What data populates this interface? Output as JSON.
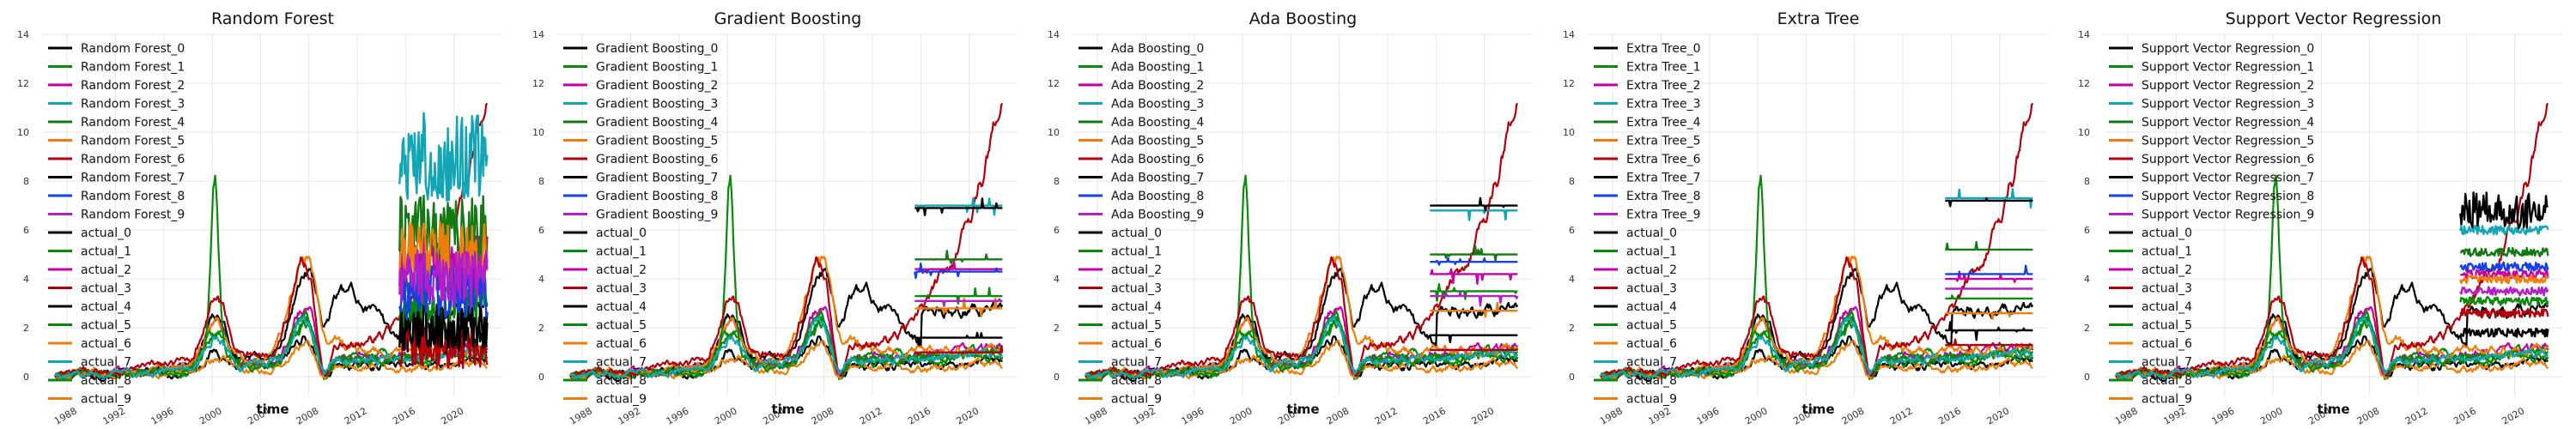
{
  "chart_data": [
    {
      "type": "line",
      "title": "Random Forest",
      "xlabel": "time",
      "ylabel": "",
      "x_tick_labels": [
        "1988",
        "1992",
        "1996",
        "2000",
        "2004",
        "2008",
        "2012",
        "2016",
        "2020"
      ],
      "y_ticks": [
        0,
        2,
        4,
        6,
        8,
        10,
        12,
        14
      ],
      "xlim": [
        1986,
        2024
      ],
      "ylim": [
        -0.8,
        14
      ],
      "grid": true,
      "legend_position": "top-left",
      "forecast_start": 2015.5,
      "forecast_style": "noisy",
      "series_names": [
        "Random Forest_0",
        "Random Forest_1",
        "Random Forest_2",
        "Random Forest_3",
        "Random Forest_4",
        "Random Forest_5",
        "Random Forest_6",
        "Random Forest_7",
        "Random Forest_8",
        "Random Forest_9"
      ],
      "forecast_levels": [
        1.8,
        3.0,
        4.5,
        9.0,
        6.0,
        5.0,
        1.2,
        2.0,
        3.5,
        4.0
      ]
    },
    {
      "type": "line",
      "title": "Gradient Boosting",
      "xlabel": "time",
      "ylabel": "",
      "x_tick_labels": [
        "1988",
        "1992",
        "1996",
        "2000",
        "2004",
        "2008",
        "2012",
        "2016",
        "2020"
      ],
      "y_ticks": [
        0,
        2,
        4,
        6,
        8,
        10,
        12,
        14
      ],
      "xlim": [
        1986,
        2024
      ],
      "ylim": [
        -0.8,
        14
      ],
      "grid": true,
      "legend_position": "top-left",
      "forecast_start": 2015.5,
      "forecast_style": "flat",
      "series_names": [
        "Gradient Boosting_0",
        "Gradient Boosting_1",
        "Gradient Boosting_2",
        "Gradient Boosting_3",
        "Gradient Boosting_4",
        "Gradient Boosting_5",
        "Gradient Boosting_6",
        "Gradient Boosting_7",
        "Gradient Boosting_8",
        "Gradient Boosting_9"
      ],
      "forecast_levels": [
        1.6,
        3.3,
        4.4,
        7.0,
        4.8,
        2.8,
        1.0,
        6.9,
        4.3,
        3.1
      ]
    },
    {
      "type": "line",
      "title": "Ada Boosting",
      "xlabel": "time",
      "ylabel": "",
      "x_tick_labels": [
        "1988",
        "1992",
        "1996",
        "2000",
        "2004",
        "2008",
        "2012",
        "2016",
        "2020"
      ],
      "y_ticks": [
        0,
        2,
        4,
        6,
        8,
        10,
        12,
        14
      ],
      "xlim": [
        1986,
        2024
      ],
      "ylim": [
        -0.8,
        14
      ],
      "grid": true,
      "legend_position": "top-left",
      "forecast_start": 2015.5,
      "forecast_style": "flat",
      "series_names": [
        "Ada Boosting_0",
        "Ada Boosting_1",
        "Ada Boosting_2",
        "Ada Boosting_3",
        "Ada Boosting_4",
        "Ada Boosting_5",
        "Ada Boosting_6",
        "Ada Boosting_7",
        "Ada Boosting_8",
        "Ada Boosting_9"
      ],
      "forecast_levels": [
        1.7,
        3.5,
        4.2,
        6.8,
        5.0,
        2.7,
        1.1,
        7.0,
        4.7,
        3.3
      ]
    },
    {
      "type": "line",
      "title": "Extra Tree",
      "xlabel": "time",
      "ylabel": "",
      "x_tick_labels": [
        "1988",
        "1992",
        "1996",
        "2000",
        "2004",
        "2008",
        "2012",
        "2016",
        "2020"
      ],
      "y_ticks": [
        0,
        2,
        4,
        6,
        8,
        10,
        12,
        14
      ],
      "xlim": [
        1986,
        2024
      ],
      "ylim": [
        -0.8,
        14
      ],
      "grid": true,
      "legend_position": "top-left",
      "forecast_start": 2015.5,
      "forecast_style": "flat",
      "series_names": [
        "Extra Tree_0",
        "Extra Tree_1",
        "Extra Tree_2",
        "Extra Tree_3",
        "Extra Tree_4",
        "Extra Tree_5",
        "Extra Tree_6",
        "Extra Tree_7",
        "Extra Tree_8",
        "Extra Tree_9"
      ],
      "forecast_levels": [
        1.9,
        3.2,
        4.0,
        7.3,
        5.2,
        2.6,
        1.3,
        7.2,
        4.2,
        3.6
      ]
    },
    {
      "type": "line",
      "title": "Support Vector Regression",
      "xlabel": "time",
      "ylabel": "",
      "x_tick_labels": [
        "1988",
        "1992",
        "1996",
        "2000",
        "2004",
        "2008",
        "2012",
        "2016",
        "2020"
      ],
      "y_ticks": [
        0,
        2,
        4,
        6,
        8,
        10,
        12,
        14
      ],
      "xlim": [
        1986,
        2024
      ],
      "ylim": [
        -0.8,
        14
      ],
      "grid": true,
      "legend_position": "top-left",
      "forecast_start": 2015.5,
      "forecast_style": "band",
      "series_names": [
        "Support Vector Regression_0",
        "Support Vector Regression_1",
        "Support Vector Regression_2",
        "Support Vector Regression_3",
        "Support Vector Regression_4",
        "Support Vector Regression_5",
        "Support Vector Regression_6",
        "Support Vector Regression_7",
        "Support Vector Regression_8",
        "Support Vector Regression_9"
      ],
      "forecast_levels": [
        1.8,
        3.1,
        4.2,
        6.0,
        5.1,
        4.0,
        2.6,
        6.8,
        4.5,
        3.5
      ]
    }
  ],
  "actual_names": [
    "actual_0",
    "actual_1",
    "actual_2",
    "actual_3",
    "actual_4",
    "actual_5",
    "actual_6",
    "actual_7",
    "actual_8",
    "actual_9"
  ],
  "palette": [
    "#000000",
    "#0a8a0a",
    "#c800aa",
    "#12a5b5",
    "#137a13",
    "#ef7d0a",
    "#b4000a",
    "#000000",
    "#1440e6",
    "#b41ec8"
  ],
  "actual_palette": [
    "#000000",
    "#0a8a0a",
    "#c800aa",
    "#b4000a",
    "#000000",
    "#0a8a0a",
    "#ef7d0a",
    "#12a5b5",
    "#0a8a0a",
    "#ef7d0a"
  ]
}
